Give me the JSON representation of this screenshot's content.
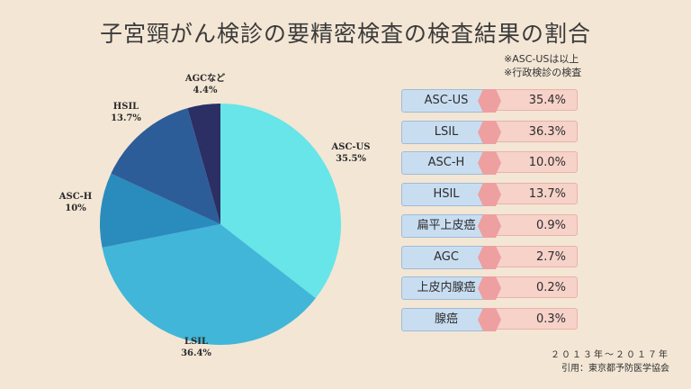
{
  "title": "子宮頸がん検診の要精密検査の検査結果の割合",
  "notes": [
    "※ASC-USは以上",
    "※行政検診の検査"
  ],
  "footer": [
    "２０１３年〜２０１７年",
    "引用：東京都予防医学協会"
  ],
  "colors": {
    "background": "#f3e6d5",
    "slices": [
      "#67e5e8",
      "#41b6d8",
      "#2a8bbd",
      "#2d5d99",
      "#2c2f64"
    ]
  },
  "chart_data": {
    "type": "pie",
    "slices": [
      {
        "name": "ASC-US",
        "value": 35.5,
        "label": "ASC-US\n35.5%"
      },
      {
        "name": "LSIL",
        "value": 36.4,
        "label": "LSIL\n36.4%"
      },
      {
        "name": "ASC-H",
        "value": 10,
        "label": "ASC-H\n10%"
      },
      {
        "name": "HSIL",
        "value": 13.7,
        "label": "HSIL\n13.7%"
      },
      {
        "name": "AGCなど",
        "value": 4.4,
        "label": "AGCなど\n4.4%"
      }
    ],
    "table": [
      {
        "name": "ASC-US",
        "value": "35.4%"
      },
      {
        "name": "LSIL",
        "value": "36.3%"
      },
      {
        "name": "ASC-H",
        "value": "10.0%"
      },
      {
        "name": "HSIL",
        "value": "13.7%"
      },
      {
        "name": "扁平上皮癌",
        "value": "0.9%"
      },
      {
        "name": "AGC",
        "value": "2.7%"
      },
      {
        "name": "上皮内腺癌",
        "value": "0.2%"
      },
      {
        "name": "腺癌",
        "value": "0.3%"
      }
    ]
  }
}
